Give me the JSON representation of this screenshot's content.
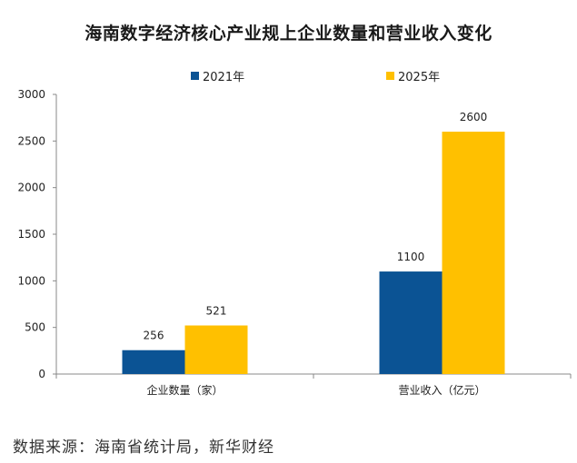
{
  "chart_data": {
    "type": "bar",
    "title": "海南数字经济核心产业规上企业数量和营业收入变化",
    "categories": [
      "企业数量（家）",
      "营业收入（亿元）"
    ],
    "series": [
      {
        "name": "2021年",
        "values": [
          256,
          1100
        ],
        "color": "#0b5394"
      },
      {
        "name": "2025年",
        "values": [
          521,
          2600
        ],
        "color": "#ffc000"
      }
    ],
    "xlabel": "",
    "ylabel": "",
    "ylim": [
      0,
      3000
    ],
    "yticks": [
      0,
      500,
      1000,
      1500,
      2000,
      2500,
      3000
    ],
    "grid": false,
    "legend_position": "top"
  },
  "source_note": "数据来源：海南省统计局，新华财经"
}
